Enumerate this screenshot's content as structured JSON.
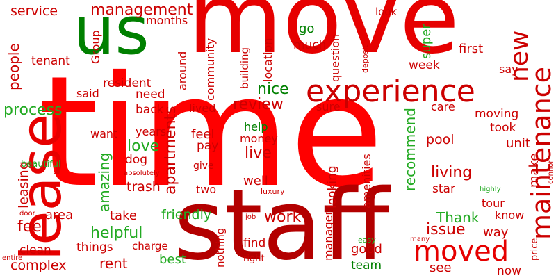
{
  "palette": [
    "#ff0000",
    "#b30000",
    "#e60000",
    "#008000",
    "#22aa22",
    "#cc0000"
  ],
  "words": [
    {
      "text": "time",
      "color": "#ff0000"
    },
    {
      "text": "move",
      "color": "#e60000"
    },
    {
      "text": "staff",
      "color": "#b30000"
    },
    {
      "text": "lease",
      "color": "#e60000"
    },
    {
      "text": "us",
      "color": "#008000"
    },
    {
      "text": "experience",
      "color": "#cc0000"
    },
    {
      "text": "maintenance",
      "color": "#cc0000"
    },
    {
      "text": "new",
      "color": "#cc0000"
    },
    {
      "text": "moved",
      "color": "#e60000"
    },
    {
      "text": "management",
      "color": "#cc0000"
    },
    {
      "text": "service",
      "color": "#cc0000"
    },
    {
      "text": "months",
      "color": "#cc0000"
    },
    {
      "text": "tenant",
      "color": "#cc0000"
    },
    {
      "text": "people",
      "color": "#cc0000"
    },
    {
      "text": "Group",
      "color": "#cc0000"
    },
    {
      "text": "resident",
      "color": "#cc0000"
    },
    {
      "text": "said",
      "color": "#cc0000"
    },
    {
      "text": "need",
      "color": "#cc0000"
    },
    {
      "text": "back",
      "color": "#cc0000"
    },
    {
      "text": "process",
      "color": "#22aa22"
    },
    {
      "text": "apartments",
      "color": "#cc0000"
    },
    {
      "text": "around",
      "color": "#cc0000"
    },
    {
      "text": "community",
      "color": "#cc0000"
    },
    {
      "text": "building",
      "color": "#cc0000"
    },
    {
      "text": "location",
      "color": "#cc0000"
    },
    {
      "text": "question",
      "color": "#cc0000"
    },
    {
      "text": "deposit",
      "color": "#cc0000"
    },
    {
      "text": "nice",
      "color": "#008000"
    },
    {
      "text": "review",
      "color": "#cc0000"
    },
    {
      "text": "go",
      "color": "#008000"
    },
    {
      "text": "much",
      "color": "#cc0000"
    },
    {
      "text": "look",
      "color": "#cc0000"
    },
    {
      "text": "super",
      "color": "#22aa22"
    },
    {
      "text": "first",
      "color": "#cc0000"
    },
    {
      "text": "week",
      "color": "#cc0000"
    },
    {
      "text": "say",
      "color": "#cc0000"
    },
    {
      "text": "lived",
      "color": "#cc0000"
    },
    {
      "text": "sure",
      "color": "#cc0000"
    },
    {
      "text": "care",
      "color": "#cc0000"
    },
    {
      "text": "moving",
      "color": "#cc0000"
    },
    {
      "text": "took",
      "color": "#cc0000"
    },
    {
      "text": "unit",
      "color": "#cc0000"
    },
    {
      "text": "pool",
      "color": "#cc0000"
    },
    {
      "text": "want",
      "color": "#cc0000"
    },
    {
      "text": "years",
      "color": "#cc0000"
    },
    {
      "text": "feel",
      "color": "#cc0000"
    },
    {
      "text": "help",
      "color": "#008000"
    },
    {
      "text": "money",
      "color": "#cc0000"
    },
    {
      "text": "love",
      "color": "#22aa22"
    },
    {
      "text": "pay",
      "color": "#cc0000"
    },
    {
      "text": "live",
      "color": "#cc0000"
    },
    {
      "text": "recommend",
      "color": "#22aa22"
    },
    {
      "text": "leasing",
      "color": "#cc0000"
    },
    {
      "text": "amazing",
      "color": "#22aa22"
    },
    {
      "text": "beautiful",
      "color": "#22aa22"
    },
    {
      "text": "absolutely",
      "color": "#cc0000"
    },
    {
      "text": "dog",
      "color": "#cc0000"
    },
    {
      "text": "give",
      "color": "#cc0000"
    },
    {
      "text": "trash",
      "color": "#cc0000"
    },
    {
      "text": "well",
      "color": "#cc0000"
    },
    {
      "text": "looking",
      "color": "#cc0000"
    },
    {
      "text": "amenities",
      "color": "#cc0000"
    },
    {
      "text": "living",
      "color": "#cc0000"
    },
    {
      "text": "make",
      "color": "#cc0000"
    },
    {
      "text": "connor",
      "color": "#cc0000"
    },
    {
      "text": "highly",
      "color": "#22aa22"
    },
    {
      "text": "star",
      "color": "#cc0000"
    },
    {
      "text": "two",
      "color": "#cc0000"
    },
    {
      "text": "luxury",
      "color": "#cc0000"
    },
    {
      "text": "area",
      "color": "#cc0000"
    },
    {
      "text": "take",
      "color": "#cc0000"
    },
    {
      "text": "friendly",
      "color": "#22aa22"
    },
    {
      "text": "work",
      "color": "#cc0000"
    },
    {
      "text": "Thank",
      "color": "#22aa22"
    },
    {
      "text": "tour",
      "color": "#cc0000"
    },
    {
      "text": "know",
      "color": "#cc0000"
    },
    {
      "text": "issue",
      "color": "#cc0000"
    },
    {
      "text": "way",
      "color": "#cc0000"
    },
    {
      "text": "fee",
      "color": "#cc0000"
    },
    {
      "text": "helpful",
      "color": "#22aa22"
    },
    {
      "text": "nothing",
      "color": "#cc0000"
    },
    {
      "text": "job",
      "color": "#cc0000"
    },
    {
      "text": "door",
      "color": "#cc0000"
    },
    {
      "text": "clean",
      "color": "#cc0000"
    },
    {
      "text": "things",
      "color": "#cc0000"
    },
    {
      "text": "charge",
      "color": "#cc0000"
    },
    {
      "text": "rent",
      "color": "#cc0000"
    },
    {
      "text": "best",
      "color": "#22aa22"
    },
    {
      "text": "find",
      "color": "#cc0000"
    },
    {
      "text": "manager",
      "color": "#cc0000"
    },
    {
      "text": "easy",
      "color": "#22aa22"
    },
    {
      "text": "good",
      "color": "#cc0000"
    },
    {
      "text": "many",
      "color": "#cc0000"
    },
    {
      "text": "price",
      "color": "#cc0000"
    },
    {
      "text": "entire",
      "color": "#cc0000"
    },
    {
      "text": "complex",
      "color": "#cc0000"
    },
    {
      "text": "right",
      "color": "#cc0000"
    },
    {
      "text": "team",
      "color": "#008000"
    },
    {
      "text": "see",
      "color": "#cc0000"
    },
    {
      "text": "now",
      "color": "#cc0000"
    }
  ]
}
